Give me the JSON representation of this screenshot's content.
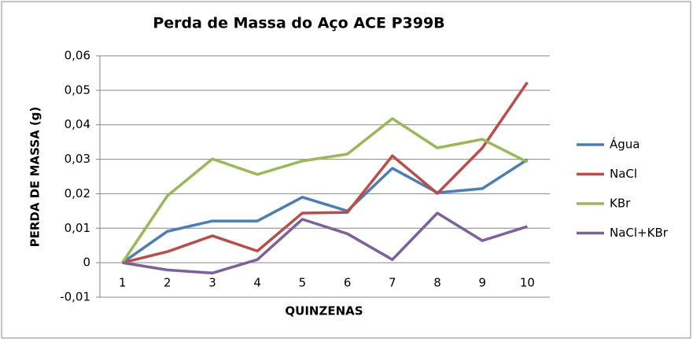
{
  "chart_data": {
    "type": "line",
    "title": "Perda de Massa do Aço ACE P399B",
    "x_label": "QUINZENAS",
    "y_label": "PERDA DE MASSA (g)",
    "categories": [
      "1",
      "2",
      "3",
      "4",
      "5",
      "6",
      "7",
      "8",
      "9",
      "10"
    ],
    "series": [
      {
        "name": "Água",
        "color": "#4a7ebb",
        "values": [
          0,
          0.0091,
          0.0121,
          0.0121,
          0.019,
          0.015,
          0.0274,
          0.0203,
          0.0215,
          0.0299
        ]
      },
      {
        "name": "NaCl",
        "color": "#be4b48",
        "values": [
          0,
          0.0032,
          0.0078,
          0.0034,
          0.0144,
          0.0146,
          0.031,
          0.0201,
          0.0333,
          0.0523
        ]
      },
      {
        "name": "KBr",
        "color": "#98b954",
        "values": [
          0,
          0.0194,
          0.0301,
          0.0256,
          0.0295,
          0.0315,
          0.0418,
          0.0333,
          0.0358,
          0.0292
        ]
      },
      {
        "name": "NaCl+KBr",
        "color": "#7d60a0",
        "values": [
          0,
          -0.0021,
          -0.003,
          0.0009,
          0.0126,
          0.0084,
          0.0009,
          0.0144,
          0.0064,
          0.0105
        ]
      }
    ],
    "ylim": [
      -0.01,
      0.06
    ],
    "yticks": [
      {
        "value": -0.01,
        "label": "-0,01"
      },
      0,
      {
        "value": 0.01,
        "label": "0,01"
      },
      {
        "value": 0.02,
        "label": "0,02"
      },
      {
        "value": 0.03,
        "label": "0,03"
      },
      {
        "value": 0.04,
        "label": "0,04"
      },
      {
        "value": 0.05,
        "label": "0,05"
      },
      {
        "value": 0.06,
        "label": "0,06"
      }
    ],
    "grid": true,
    "legend": "right"
  }
}
